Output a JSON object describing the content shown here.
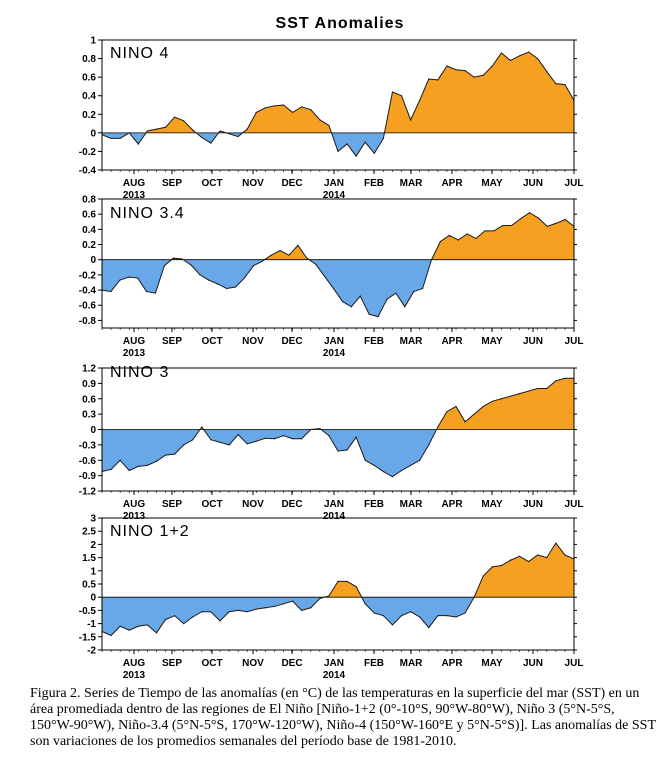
{
  "figure": {
    "title": "SST Anomalies",
    "caption": "Figura 2. Series de Tiempo de las anomalías (en °C) de las temperaturas en la superficie del mar (SST) en un área promediada dentro de las regiones de El Niño [Niño-1+2 (0°-10°S, 90°W-80°W), Niño 3 (5°N-5°S, 150°W-90°W), Niño-3.4 (5°N-5°S, 170°W-120°W), Niño-4 (150°W-160°E y 5°N-5°S)]. Las anomalías de SST son variaciones de los promedios semanales del período base de 1981-2010."
  },
  "colors": {
    "positive": "#f5a020",
    "negative": "#68a8e8",
    "line": "#1a1a1a",
    "axis": "#000000"
  },
  "months": [
    "AUG",
    "SEP",
    "OCT",
    "NOV",
    "DEC",
    "JAN",
    "FEB",
    "MAR",
    "APR",
    "MAY",
    "JUN",
    "JUL"
  ],
  "years": [
    {
      "label": "2013",
      "month_index": 0
    },
    {
      "label": "2014",
      "month_index": 5
    }
  ],
  "chart_data": [
    {
      "type": "area",
      "title": "NINO 4",
      "x_unit": "weeks since start of Aug 2013",
      "ylim": [
        -0.4,
        1.0
      ],
      "yticks": [
        "-0.4",
        "-0.2",
        "0",
        "0.2",
        "0.4",
        "0.6",
        "0.8",
        "1"
      ],
      "ytick_values": [
        -0.4,
        -0.2,
        0,
        0.2,
        0.4,
        0.6,
        0.8,
        1.0
      ],
      "values": [
        -0.02,
        -0.06,
        -0.06,
        0.0,
        -0.12,
        0.02,
        0.04,
        0.06,
        0.17,
        0.13,
        0.03,
        -0.05,
        -0.11,
        0.02,
        -0.01,
        -0.04,
        0.04,
        0.22,
        0.27,
        0.29,
        0.3,
        0.22,
        0.28,
        0.25,
        0.14,
        0.08,
        -0.2,
        -0.12,
        -0.25,
        -0.1,
        -0.22,
        -0.06,
        0.44,
        0.4,
        0.14,
        0.35,
        0.58,
        0.57,
        0.72,
        0.68,
        0.67,
        0.6,
        0.62,
        0.72,
        0.86,
        0.78,
        0.83,
        0.87,
        0.8,
        0.66,
        0.53,
        0.52,
        0.35
      ]
    },
    {
      "type": "area",
      "title": "NINO 3.4",
      "x_unit": "weeks since start of Aug 2013",
      "ylim": [
        -0.9,
        0.8
      ],
      "yticks": [
        "-0.8",
        "-0.6",
        "-0.4",
        "-0.2",
        "0",
        "0.2",
        "0.4",
        "0.6",
        "0.8"
      ],
      "ytick_values": [
        -0.8,
        -0.6,
        -0.4,
        -0.2,
        0,
        0.2,
        0.4,
        0.6,
        0.8
      ],
      "values": [
        -0.4,
        -0.42,
        -0.27,
        -0.23,
        -0.24,
        -0.42,
        -0.44,
        -0.08,
        0.02,
        0.01,
        -0.07,
        -0.2,
        -0.27,
        -0.32,
        -0.38,
        -0.36,
        -0.24,
        -0.08,
        -0.02,
        0.06,
        0.12,
        0.06,
        0.19,
        0.02,
        -0.06,
        -0.22,
        -0.38,
        -0.55,
        -0.62,
        -0.48,
        -0.72,
        -0.75,
        -0.52,
        -0.44,
        -0.62,
        -0.42,
        -0.38,
        0.0,
        0.24,
        0.32,
        0.26,
        0.34,
        0.28,
        0.38,
        0.38,
        0.45,
        0.45,
        0.54,
        0.62,
        0.55,
        0.44,
        0.48,
        0.53,
        0.44
      ]
    },
    {
      "type": "area",
      "title": "NINO 3",
      "x_unit": "weeks since start of Aug 2013",
      "ylim": [
        -1.2,
        1.2
      ],
      "yticks": [
        "-1.2",
        "-0.9",
        "-0.6",
        "-0.3",
        "0",
        "0.3",
        "0.6",
        "0.9",
        "1.2"
      ],
      "ytick_values": [
        -1.2,
        -0.9,
        -0.6,
        -0.3,
        0,
        0.3,
        0.6,
        0.9,
        1.2
      ],
      "values": [
        -0.82,
        -0.78,
        -0.6,
        -0.8,
        -0.72,
        -0.7,
        -0.62,
        -0.5,
        -0.48,
        -0.3,
        -0.2,
        0.05,
        -0.2,
        -0.25,
        -0.3,
        -0.1,
        -0.28,
        -0.23,
        -0.17,
        -0.18,
        -0.12,
        -0.18,
        -0.18,
        0.0,
        0.02,
        -0.12,
        -0.42,
        -0.4,
        -0.15,
        -0.6,
        -0.7,
        -0.82,
        -0.92,
        -0.8,
        -0.7,
        -0.6,
        -0.3,
        0.05,
        0.35,
        0.45,
        0.15,
        0.3,
        0.45,
        0.55,
        0.6,
        0.65,
        0.7,
        0.75,
        0.8,
        0.8,
        0.95,
        1.0,
        1.0
      ]
    },
    {
      "type": "area",
      "title": "NINO 1+2",
      "x_unit": "weeks since start of Aug 2013",
      "ylim": [
        -2.0,
        3.0
      ],
      "yticks": [
        "-2",
        "-1.5",
        "-1",
        "-0.5",
        "0",
        "0.5",
        "1",
        "1.5",
        "2",
        "2.5",
        "3"
      ],
      "ytick_values": [
        -2,
        -1.5,
        -1,
        -0.5,
        0,
        0.5,
        1,
        1.5,
        2,
        2.5,
        3
      ],
      "values": [
        -1.3,
        -1.45,
        -1.1,
        -1.25,
        -1.1,
        -1.05,
        -1.35,
        -0.85,
        -0.7,
        -1.0,
        -0.75,
        -0.55,
        -0.55,
        -0.9,
        -0.55,
        -0.5,
        -0.55,
        -0.45,
        -0.4,
        -0.35,
        -0.25,
        -0.15,
        -0.5,
        -0.4,
        -0.05,
        0.05,
        0.6,
        0.6,
        0.4,
        -0.25,
        -0.6,
        -0.7,
        -1.05,
        -0.7,
        -0.55,
        -0.75,
        -1.15,
        -0.7,
        -0.7,
        -0.75,
        -0.6,
        0.0,
        0.8,
        1.15,
        1.2,
        1.4,
        1.55,
        1.35,
        1.6,
        1.5,
        2.05,
        1.6,
        1.45
      ]
    }
  ]
}
